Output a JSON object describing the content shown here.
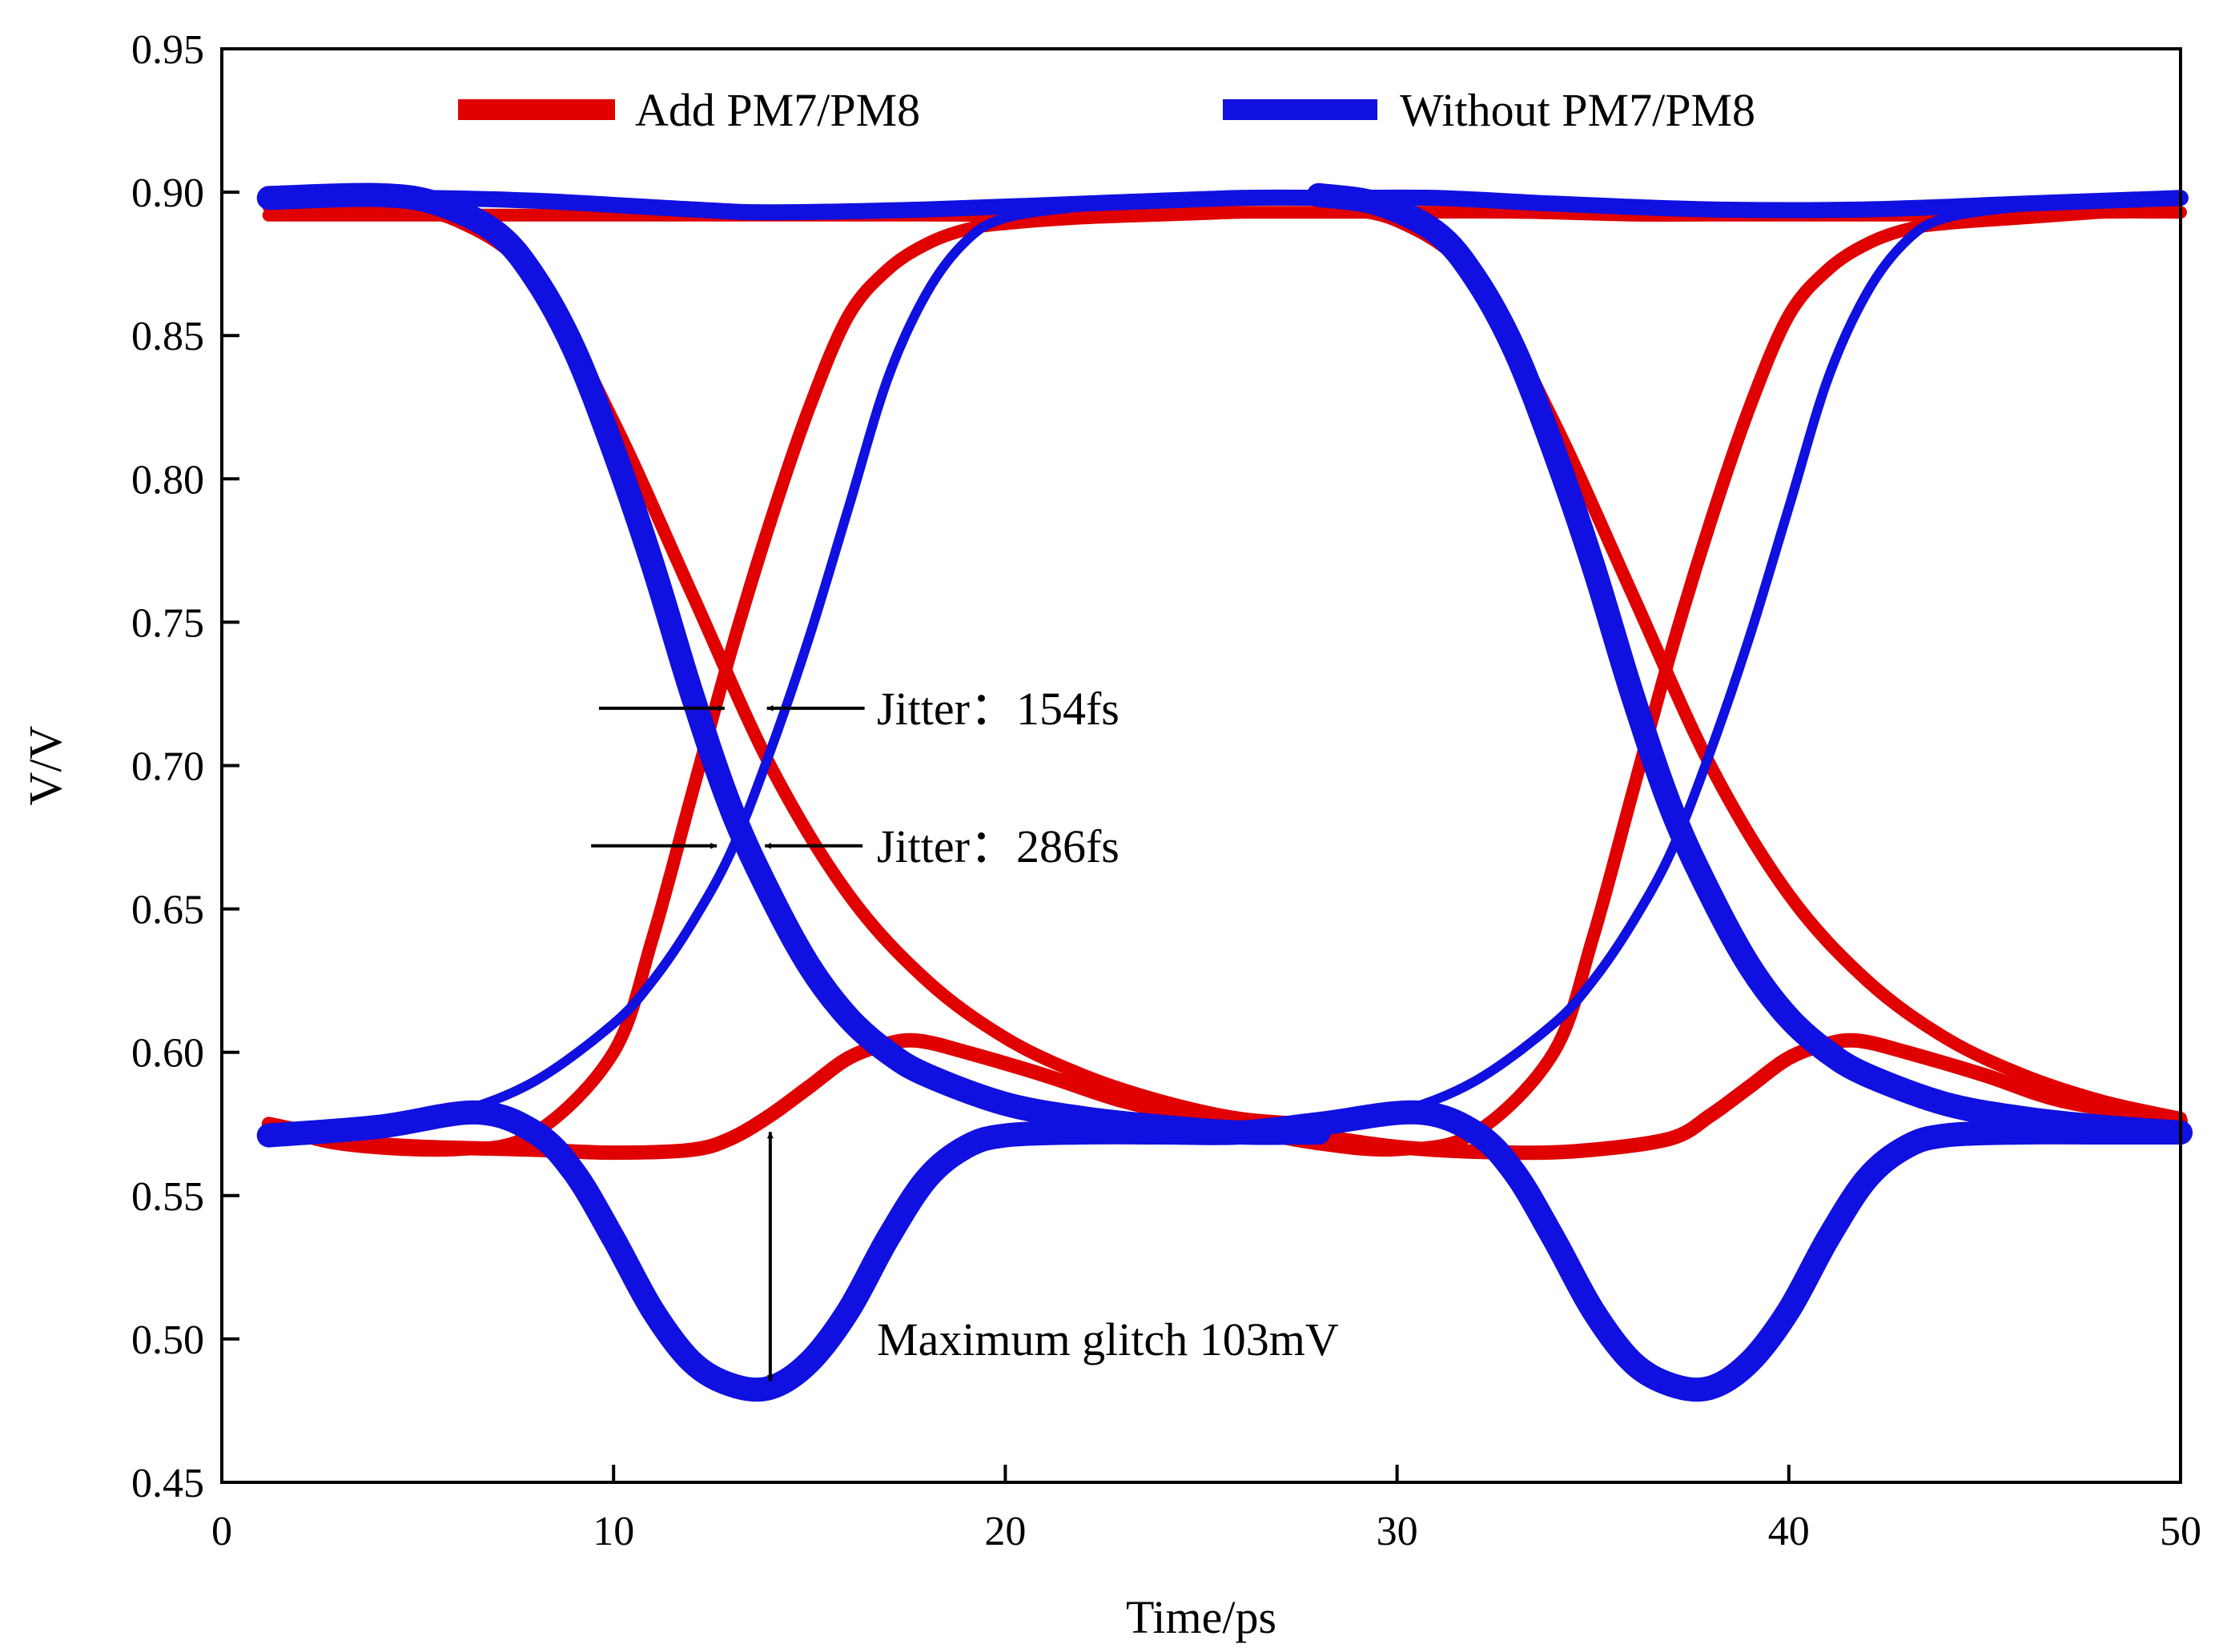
{
  "chart_data": {
    "type": "line",
    "title": "",
    "xlabel": "Time/ps",
    "ylabel": "V/V",
    "xlim": [
      0,
      50
    ],
    "ylim": [
      0.45,
      0.95
    ],
    "xticks": [
      0,
      10,
      20,
      30,
      40,
      50
    ],
    "xtick_labels": [
      "0",
      "10",
      "20",
      "30",
      "40",
      "50"
    ],
    "yticks": [
      0.45,
      0.5,
      0.55,
      0.6,
      0.65,
      0.7,
      0.75,
      0.8,
      0.85,
      0.9,
      0.95
    ],
    "ytick_labels": [
      "0.45",
      "0.50",
      "0.55",
      "0.60",
      "0.65",
      "0.70",
      "0.75",
      "0.80",
      "0.85",
      "0.90",
      "0.95"
    ],
    "grid": false,
    "legend_position": "top",
    "colors": {
      "add": "#e00000",
      "without": "#1010e0",
      "axis": "#000000"
    },
    "series": [
      {
        "name": "Add PM7/PM8",
        "color": "#e00000",
        "traces": [
          {
            "x": [
              1.2,
              5,
              9,
              12,
              14,
              16,
              18,
              20,
              22,
              24,
              26,
              28.5,
              30,
              33,
              36,
              38,
              40,
              42,
              44,
              46,
              48,
              50
            ],
            "y": [
              0.892,
              0.892,
              0.892,
              0.892,
              0.892,
              0.892,
              0.892,
              0.892,
              0.893,
              0.893,
              0.893,
              0.893,
              0.893,
              0.893,
              0.892,
              0.892,
              0.892,
              0.892,
              0.892,
              0.892,
              0.893,
              0.893
            ]
          },
          {
            "x": [
              1.2,
              4,
              6,
              8,
              10,
              12,
              14,
              16,
              18,
              20,
              22,
              24,
              26,
              28
            ],
            "y": [
              0.895,
              0.895,
              0.89,
              0.87,
              0.82,
              0.76,
              0.7,
              0.655,
              0.625,
              0.605,
              0.592,
              0.583,
              0.577,
              0.575
            ]
          },
          {
            "x": [
              28,
              30,
              32,
              34,
              36,
              38,
              40,
              42,
              44,
              46,
              48,
              50
            ],
            "y": [
              0.895,
              0.89,
              0.87,
              0.82,
              0.76,
              0.7,
              0.655,
              0.625,
              0.605,
              0.592,
              0.583,
              0.577
            ]
          },
          {
            "x": [
              1.2,
              3,
              6,
              8,
              10,
              11,
              12,
              13,
              14,
              15,
              16,
              17,
              18,
              19,
              20,
              22,
              24,
              26
            ],
            "y": [
              0.575,
              0.568,
              0.566,
              0.572,
              0.6,
              0.64,
              0.69,
              0.74,
              0.785,
              0.825,
              0.857,
              0.873,
              0.882,
              0.887,
              0.889,
              0.891,
              0.892,
              0.893
            ]
          },
          {
            "x": [
              26,
              28,
              30,
              32,
              34,
              35,
              36,
              37,
              38,
              39,
              40,
              41,
              42,
              43,
              44,
              46,
              48
            ],
            "y": [
              0.573,
              0.568,
              0.566,
              0.572,
              0.6,
              0.64,
              0.69,
              0.74,
              0.785,
              0.825,
              0.857,
              0.873,
              0.882,
              0.887,
              0.889,
              0.891,
              0.893
            ]
          },
          {
            "x": [
              1.2,
              4,
              8,
              10,
              12,
              13,
              14,
              15,
              16,
              17,
              17.8,
              19,
              21,
              23,
              25,
              27,
              30,
              33,
              35,
              37,
              38,
              39,
              40,
              41,
              41.8,
              43,
              45,
              47,
              50
            ],
            "y": [
              0.575,
              0.568,
              0.566,
              0.565,
              0.566,
              0.57,
              0.578,
              0.588,
              0.598,
              0.603,
              0.604,
              0.6,
              0.592,
              0.583,
              0.577,
              0.573,
              0.567,
              0.565,
              0.566,
              0.57,
              0.578,
              0.588,
              0.598,
              0.603,
              0.604,
              0.6,
              0.592,
              0.583,
              0.576
            ]
          }
        ]
      },
      {
        "name": "Without PM7/PM8",
        "color": "#1010e0",
        "traces": [
          {
            "x": [
              1.2,
              5,
              8,
              12,
              14,
              18,
              22,
              26,
              28.5,
              31,
              34,
              38,
              42,
              46,
              50
            ],
            "y": [
              0.898,
              0.898,
              0.897,
              0.894,
              0.893,
              0.894,
              0.896,
              0.898,
              0.898,
              0.898,
              0.896,
              0.894,
              0.894,
              0.896,
              0.898
            ]
          },
          {
            "x": [
              1.2,
              4,
              5.5,
              7,
              8,
              9,
              10,
              11,
              12,
              13,
              14,
              15,
              16,
              17,
              18,
              20,
              22,
              24,
              26,
              28
            ],
            "y": [
              0.898,
              0.899,
              0.896,
              0.886,
              0.87,
              0.845,
              0.81,
              0.77,
              0.725,
              0.685,
              0.655,
              0.63,
              0.612,
              0.6,
              0.592,
              0.582,
              0.577,
              0.574,
              0.572,
              0.572
            ]
          },
          {
            "x": [
              28,
              29.5,
              31,
              32,
              33,
              34,
              35,
              36,
              37,
              38,
              39,
              40,
              41,
              42,
              44,
              46,
              48,
              50
            ],
            "y": [
              0.899,
              0.896,
              0.886,
              0.87,
              0.845,
              0.81,
              0.77,
              0.725,
              0.685,
              0.655,
              0.63,
              0.612,
              0.6,
              0.592,
              0.582,
              0.577,
              0.574,
              0.572
            ]
          },
          {
            "x": [
              1.2,
              4,
              6,
              8,
              10,
              11,
              12,
              13,
              14,
              15,
              16,
              17,
              18,
              19,
              20,
              22,
              24,
              26
            ],
            "y": [
              0.571,
              0.574,
              0.579,
              0.59,
              0.61,
              0.625,
              0.645,
              0.67,
              0.705,
              0.745,
              0.79,
              0.835,
              0.865,
              0.883,
              0.891,
              0.895,
              0.897,
              0.898
            ]
          },
          {
            "x": [
              26,
              28,
              30,
              32,
              34,
              35,
              36,
              37,
              38,
              39,
              40,
              41,
              42,
              43,
              44,
              46,
              48,
              50
            ],
            "y": [
              0.572,
              0.574,
              0.579,
              0.59,
              0.61,
              0.625,
              0.645,
              0.67,
              0.705,
              0.745,
              0.79,
              0.835,
              0.865,
              0.883,
              0.891,
              0.895,
              0.897,
              0.898
            ]
          },
          {
            "x": [
              1.2,
              4,
              6.5,
              8,
              9,
              10,
              11,
              12,
              13,
              14,
              15,
              16,
              17,
              18,
              19,
              20,
              22,
              24,
              26,
              28,
              30.5,
              32,
              33,
              34,
              35,
              36,
              37,
              38,
              39,
              40,
              41,
              42,
              43,
              44,
              46,
              48,
              50
            ],
            "y": [
              0.571,
              0.574,
              0.579,
              0.572,
              0.558,
              0.535,
              0.51,
              0.492,
              0.484,
              0.483,
              0.492,
              0.51,
              0.535,
              0.556,
              0.567,
              0.571,
              0.572,
              0.572,
              0.572,
              0.575,
              0.579,
              0.572,
              0.558,
              0.535,
              0.51,
              0.492,
              0.484,
              0.483,
              0.492,
              0.51,
              0.535,
              0.556,
              0.567,
              0.571,
              0.572,
              0.572,
              0.572
            ]
          }
        ]
      }
    ],
    "annotations": [
      {
        "text": "Jitter：154fs",
        "x_left": 13.0,
        "x_right": 13.75,
        "y": 0.72
      },
      {
        "text": "Jitter：286fs",
        "x_left": 12.8,
        "x_right": 13.7,
        "y": 0.672
      },
      {
        "text": "Maximum glitch 103mV",
        "x": 14.0,
        "y_top": 0.575,
        "y_bottom": 0.483
      }
    ]
  }
}
